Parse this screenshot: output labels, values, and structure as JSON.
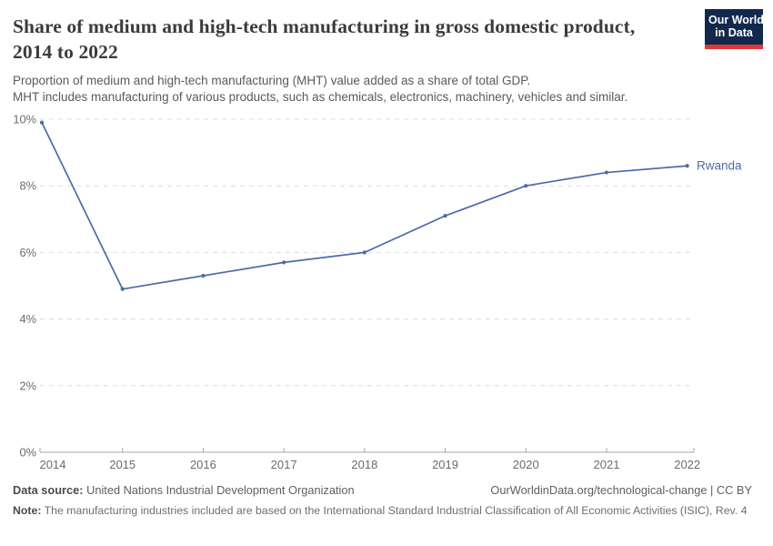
{
  "header": {
    "title": "Share of medium and high-tech manufacturing in gross domestic product, 2014 to 2022",
    "subtitle_line1": "Proportion of medium and high-tech manufacturing (MHT) value added as a share of total GDP.",
    "subtitle_line2": "MHT includes manufacturing of various products, such as chemicals, electronics, machinery, vehicles and similar.",
    "logo": {
      "line1": "Our World",
      "line2": "in Data",
      "bg_color": "#12294d",
      "accent_color": "#e0373d"
    }
  },
  "chart_data": {
    "type": "line",
    "title": "Share of medium and high-tech manufacturing in gross domestic product, 2014 to 2022",
    "x": [
      2014,
      2015,
      2016,
      2017,
      2018,
      2019,
      2020,
      2021,
      2022
    ],
    "series": [
      {
        "name": "Rwanda",
        "values": [
          9.9,
          4.9,
          5.3,
          5.7,
          6.0,
          7.1,
          8.0,
          8.4,
          8.6
        ],
        "color": "#4c6ba9"
      }
    ],
    "xlabel": "",
    "ylabel": "",
    "ylim": [
      0,
      10
    ],
    "yticks": [
      0,
      2,
      4,
      6,
      8,
      10
    ],
    "ytick_labels": [
      "0%",
      "2%",
      "4%",
      "6%",
      "8%",
      "10%"
    ],
    "xtick_labels": [
      "2014",
      "2015",
      "2016",
      "2017",
      "2018",
      "2019",
      "2020",
      "2021",
      "2022"
    ],
    "grid": "horizontal-dashed",
    "legend_position": "end-of-line-label",
    "colors": {
      "gridline": "#dcdcdc",
      "axis": "#a7a7a7",
      "tick_label": "#6b6b6b",
      "line": "#4c6ba9"
    }
  },
  "footer": {
    "datasource_label": "Data source:",
    "datasource_value": "United Nations Industrial Development Organization",
    "link": "OurWorldinData.org/technological-change | CC BY",
    "note_label": "Note:",
    "note_value": "The manufacturing industries included are based on the International Standard Industrial Classification of All Economic Activities (ISIC), Rev. 4"
  }
}
